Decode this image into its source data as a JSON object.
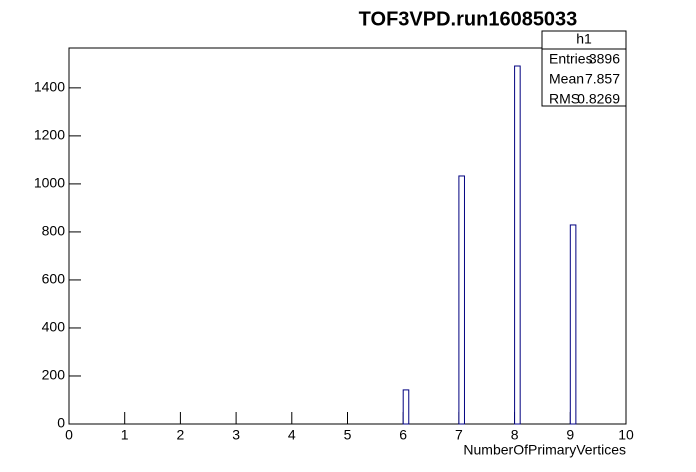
{
  "chart_data": {
    "type": "histogram",
    "title": "TOF3VPD.run16085033",
    "x_label": "NumberOfPrimaryVertices",
    "bins": [
      0,
      0.1,
      0.2,
      0.3,
      0.4,
      0.5,
      0.6,
      0.7,
      0.8,
      0.9,
      1,
      1.1,
      1.2,
      1.3,
      1.4,
      1.5,
      1.6,
      1.7,
      1.8,
      1.9,
      2,
      2.1,
      2.2,
      2.3,
      2.4,
      2.5,
      2.6,
      2.7,
      2.8,
      2.9,
      3,
      3.1,
      3.2,
      3.3,
      3.4,
      3.5,
      3.6,
      3.7,
      3.8,
      3.9,
      4,
      4.1,
      4.2,
      4.3,
      4.4,
      4.5,
      4.6,
      4.7,
      4.8,
      4.9,
      5,
      5.1,
      5.2,
      5.3,
      5.4,
      5.5,
      5.6,
      5.7,
      5.8,
      5.9,
      6,
      6.1,
      6.2,
      6.3,
      6.4,
      6.5,
      6.6,
      6.7,
      6.8,
      6.9,
      7,
      7.1,
      7.2,
      7.3,
      7.4,
      7.5,
      7.6,
      7.7,
      7.8,
      7.9,
      8,
      8.1,
      8.2,
      8.3,
      8.4,
      8.5,
      8.6,
      8.7,
      8.8,
      8.9,
      9,
      9.1,
      9.2,
      9.3,
      9.4,
      9.5,
      9.6,
      9.7,
      9.8,
      9.9,
      10
    ],
    "values": [
      0,
      0,
      0,
      0,
      0,
      0,
      0,
      0,
      0,
      0,
      0,
      0,
      0,
      0,
      0,
      0,
      0,
      0,
      0,
      0,
      0,
      0,
      0,
      0,
      0,
      0,
      0,
      0,
      0,
      0,
      0,
      0,
      0,
      0,
      0,
      0,
      0,
      0,
      0,
      0,
      0,
      0,
      0,
      0,
      0,
      0,
      0,
      0,
      0,
      0,
      0,
      0,
      0,
      0,
      0,
      0,
      0,
      0,
      0,
      0,
      142,
      0,
      0,
      0,
      0,
      0,
      0,
      0,
      0,
      0,
      1033,
      0,
      0,
      0,
      0,
      0,
      0,
      0,
      0,
      0,
      1491,
      0,
      0,
      0,
      0,
      0,
      0,
      0,
      0,
      0,
      829,
      0,
      0,
      0,
      0,
      0,
      0,
      0,
      0,
      0
    ],
    "color": "#000080",
    "xlim": [
      0,
      10
    ],
    "xticks": [
      0,
      1,
      2,
      3,
      4,
      5,
      6,
      7,
      8,
      9,
      10
    ],
    "ylim": [
      0,
      1566
    ],
    "yticks": [
      0,
      200,
      400,
      600,
      800,
      1000,
      1200,
      1400
    ],
    "stats": {
      "title": "h1",
      "rows": [
        [
          "Entries",
          "3896"
        ],
        [
          "Mean",
          "7.857"
        ],
        [
          "RMS",
          "0.8269"
        ]
      ]
    }
  }
}
